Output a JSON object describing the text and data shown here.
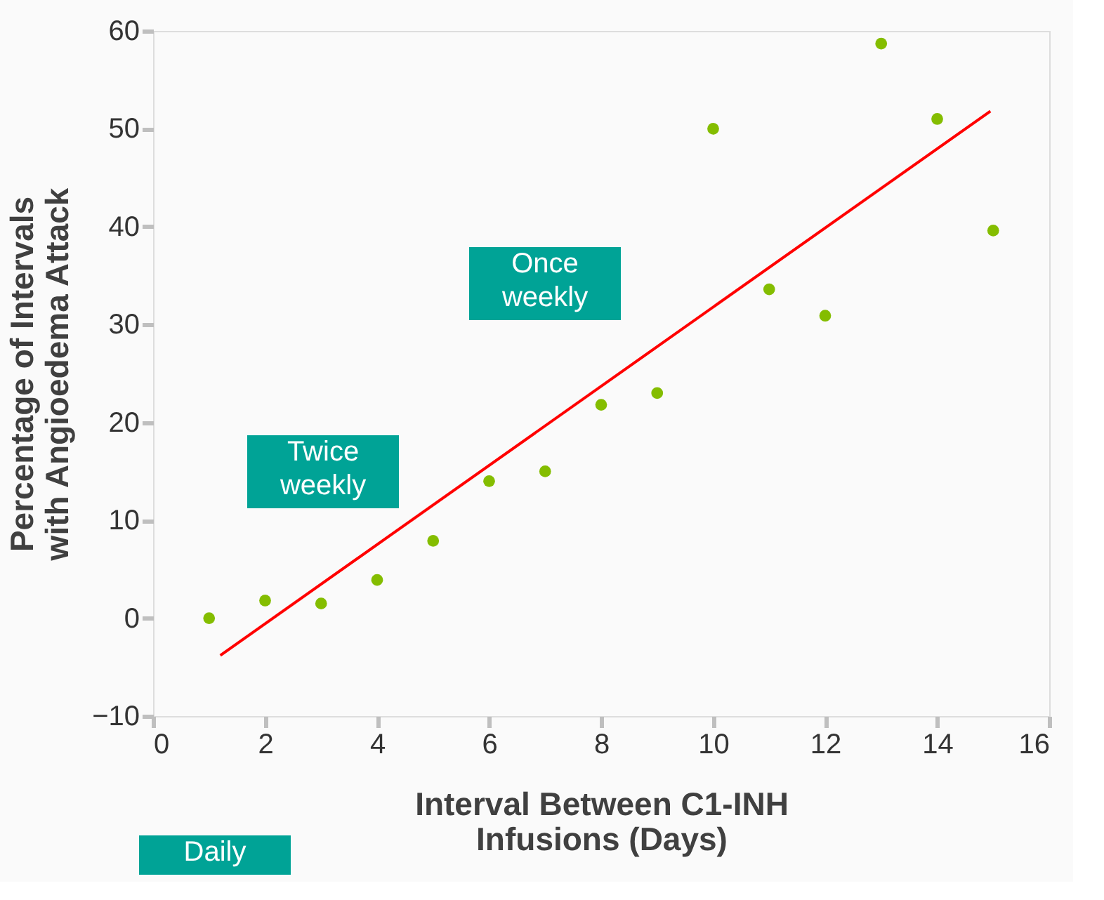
{
  "chart_data": {
    "type": "scatter",
    "xlabel": "Interval Between C1-INH Infusions (Days)",
    "ylabel": "Percentage of Intervals with Angioedema Attack",
    "xlim": [
      0,
      16
    ],
    "xticks": [
      0,
      2,
      4,
      6,
      8,
      10,
      12,
      14,
      16
    ],
    "ylim": [
      -10,
      60
    ],
    "yticks": [
      -10,
      0,
      10,
      20,
      30,
      40,
      50,
      60
    ],
    "grid": false,
    "series": [
      {
        "color": "#84bd00",
        "marker": "circle",
        "x": [
          1,
          2,
          3,
          4,
          5,
          6,
          7,
          8,
          9,
          10,
          11,
          12,
          13,
          14,
          15
        ],
        "values": [
          0,
          1.8,
          1.5,
          3.9,
          7.9,
          14.0,
          15.0,
          21.8,
          23.0,
          50.0,
          33.6,
          30.9,
          58.7,
          51.0,
          39.6
        ]
      },
      {
        "type": "line",
        "color": "#ff0000",
        "line_style": "solid",
        "marker": "none",
        "x": [
          1.2,
          14.95
        ],
        "values": [
          -3.8,
          51.8
        ]
      }
    ],
    "annotations": [
      "Twice weekly",
      "Once weekly",
      "Daily"
    ]
  }
}
